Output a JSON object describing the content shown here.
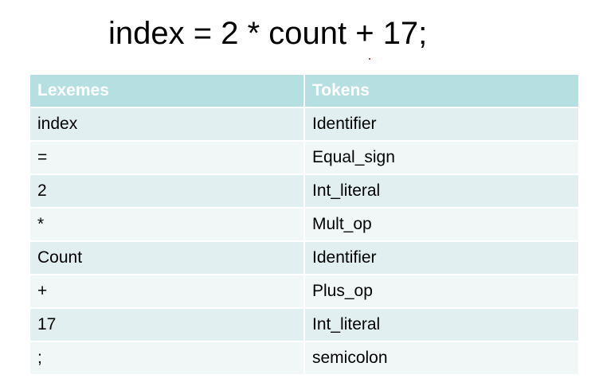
{
  "heading": "index = 2 * count + 17;",
  "table": {
    "columns": [
      "Lexemes",
      "Tokens"
    ],
    "rows": [
      {
        "lexeme": "index",
        "token": "Identifier"
      },
      {
        "lexeme": "=",
        "token": "Equal_sign"
      },
      {
        "lexeme": "2",
        "token": "Int_literal"
      },
      {
        "lexeme": "*",
        "token": "Mult_op"
      },
      {
        "lexeme": "Count",
        "token": "Identifier"
      },
      {
        "lexeme": "+",
        "token": "Plus_op"
      },
      {
        "lexeme": "17",
        "token": "Int_literal"
      },
      {
        "lexeme": ";",
        "token": "semicolon"
      }
    ]
  },
  "colors": {
    "header_bg": "#b5dfe1",
    "row_odd_bg": "#e2eff0",
    "row_even_bg": "#f1f7f7",
    "header_text": "#ffffff"
  }
}
